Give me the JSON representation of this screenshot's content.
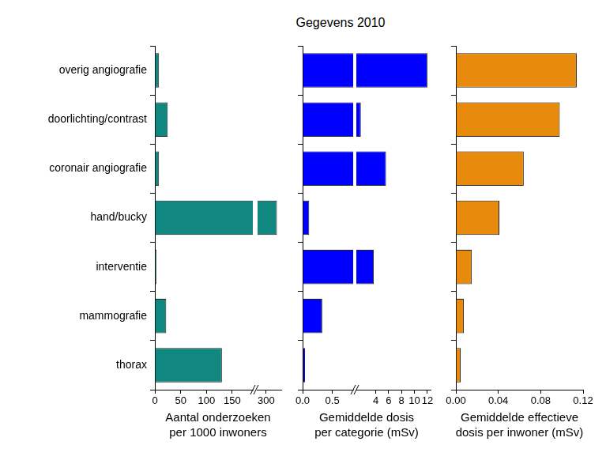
{
  "title": "Gegevens 2010",
  "chart_data": [
    {
      "type": "bar",
      "orientation": "horizontal",
      "categories": [
        "overig angiografie",
        "doorlichting/contrast",
        "coronair angiografie",
        "hand/bucky",
        "interventie",
        "mammografie",
        "thorax"
      ],
      "values": [
        8,
        25,
        8,
        325,
        3,
        22,
        130
      ],
      "color": "#11887f",
      "xlabel": [
        "Aantal onderzoeken",
        "per 1000 inwoners"
      ],
      "xlim": [
        [
          0,
          190
        ],
        [
          280,
          335
        ]
      ],
      "xticks": [
        [
          0,
          50,
          100,
          150
        ],
        [
          300
        ]
      ]
    },
    {
      "type": "bar",
      "orientation": "horizontal",
      "categories": [
        "overig angiografie",
        "doorlichting/contrast",
        "coronair angiografie",
        "hand/bucky",
        "interventie",
        "mammografie",
        "thorax"
      ],
      "values": [
        12,
        1.7,
        5.6,
        0.11,
        3.7,
        0.33,
        0.04
      ],
      "color": "#0000ff",
      "xlabel": [
        "Gemiddelde dosis",
        "per categorie (mSv)"
      ],
      "xlim": [
        [
          0,
          0.85
        ],
        [
          1,
          12.5
        ]
      ],
      "xticks": [
        [
          {
            "value": 0,
            "label": "0.0"
          },
          0.5
        ],
        [
          4,
          6,
          8,
          10,
          12
        ]
      ],
      "tick_labels": "x"
    },
    {
      "type": "bar",
      "orientation": "horizontal",
      "categories": [
        "overig angiografie",
        "doorlichting/contrast",
        "coronair angiografie",
        "hand/bucky",
        "interventie",
        "mammografie",
        "thorax"
      ],
      "values": [
        0.114,
        0.098,
        0.064,
        0.041,
        0.015,
        0.0075,
        0.0045
      ],
      "color": "#e88a0c",
      "xlabel": [
        "Gemiddelde effectieve",
        "dosis per inwoner (mSv)"
      ],
      "xlim": [
        0,
        0.12
      ],
      "xticks": [
        {
          "value": 0,
          "label": "0.00"
        },
        0.04,
        0.08,
        0.12
      ],
      "tick_labels": "x"
    }
  ]
}
